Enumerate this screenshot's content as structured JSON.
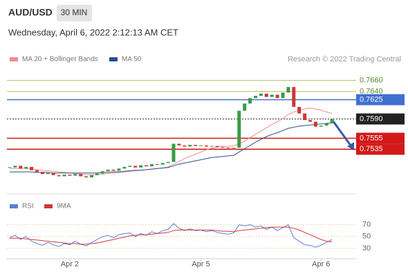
{
  "symbol": "AUD/USD",
  "timeframe": "30 MIN",
  "date": "Wednesday, April 6, 2022 2:12:13 AM CET",
  "credit": "Research © 2022 Trading Central",
  "chart_data": [
    {
      "type": "candlestick",
      "up_color": "#3a9a46",
      "down_color": "#d0363a",
      "ylim": [
        0.7454,
        0.7687
      ],
      "closes": [
        0.7502,
        0.7505,
        0.75,
        0.7503,
        0.7497,
        0.7494,
        0.749,
        0.7492,
        0.7488,
        0.7486,
        0.7489,
        0.7487,
        0.749,
        0.7486,
        0.7484,
        0.7488,
        0.7491,
        0.7495,
        0.7498,
        0.7496,
        0.75,
        0.7503,
        0.7505,
        0.7502,
        0.7506,
        0.7504,
        0.7508,
        0.7507,
        0.751,
        0.7512,
        0.7545,
        0.7542,
        0.754,
        0.7543,
        0.7541,
        0.7542,
        0.754,
        0.7541,
        0.7539,
        0.7538,
        0.7537,
        0.7538,
        0.7605,
        0.7618,
        0.7628,
        0.7632,
        0.7636,
        0.763,
        0.7634,
        0.7628,
        0.7638,
        0.7648,
        0.7612,
        0.76,
        0.7588,
        0.7585,
        0.7576,
        0.7578,
        0.7582,
        0.759
      ],
      "series": [
        {
          "name": "MA 20 + Bollinger Bands",
          "color": "#f08a8a",
          "values": [
            0.75,
            0.75,
            0.75,
            0.75,
            0.7499,
            0.7498,
            0.7497,
            0.7496,
            0.7495,
            0.7494,
            0.7493,
            0.7492,
            0.7491,
            0.749,
            0.7489,
            0.7489,
            0.7489,
            0.749,
            0.7491,
            0.7492,
            0.7493,
            0.7494,
            0.7495,
            0.7496,
            0.7497,
            0.7498,
            0.7499,
            0.75,
            0.7501,
            0.7503,
            0.7508,
            0.7513,
            0.7518,
            0.7522,
            0.7526,
            0.753,
            0.7534,
            0.7537,
            0.7539,
            0.754,
            0.754,
            0.7541,
            0.7545,
            0.755,
            0.7556,
            0.7562,
            0.7568,
            0.7574,
            0.758,
            0.7585,
            0.7591,
            0.7598,
            0.7603,
            0.7606,
            0.7608,
            0.761,
            0.7608,
            0.7606,
            0.7603,
            0.76
          ]
        },
        {
          "name": "MA 50",
          "color": "#2a4f8f",
          "values": [
            0.7494,
            0.7494,
            0.7494,
            0.7494,
            0.7494,
            0.7493,
            0.7493,
            0.7493,
            0.7492,
            0.7492,
            0.7492,
            0.7492,
            0.7492,
            0.7492,
            0.7492,
            0.7492,
            0.7492,
            0.7493,
            0.7493,
            0.7494,
            0.7494,
            0.7495,
            0.7496,
            0.7497,
            0.7497,
            0.7498,
            0.7499,
            0.75,
            0.7501,
            0.7502,
            0.7505,
            0.7508,
            0.751,
            0.7512,
            0.7514,
            0.7516,
            0.7518,
            0.752,
            0.7521,
            0.7522,
            0.7523,
            0.7524,
            0.753,
            0.7536,
            0.7542,
            0.7548,
            0.7553,
            0.7558,
            0.7562,
            0.7565,
            0.7569,
            0.7573,
            0.7575,
            0.7577,
            0.7578,
            0.7579,
            0.758,
            0.7581,
            0.7582,
            0.7583
          ]
        }
      ],
      "levels": [
        {
          "value": 0.766,
          "label": "0.7660",
          "color": "#b5c46a",
          "boxed": false,
          "text_color": "#5a8a1e"
        },
        {
          "value": 0.764,
          "label": "0.7640",
          "color": "#b5c46a",
          "boxed": false,
          "text_color": "#5a8a1e"
        },
        {
          "value": 0.7625,
          "label": "0.7625",
          "color": "#3f6fd1",
          "boxed": true,
          "text_color": "#ffffff"
        },
        {
          "value": 0.759,
          "label": "0.7590",
          "color": "#222222",
          "boxed": true,
          "text_color": "#ffffff"
        },
        {
          "value": 0.7555,
          "label": "0.7555",
          "color": "#d11a1a",
          "boxed": true,
          "text_color": "#ffffff"
        },
        {
          "value": 0.7535,
          "label": "0.7535",
          "color": "#d11a1a",
          "boxed": true,
          "text_color": "#ffffff"
        }
      ]
    },
    {
      "type": "line",
      "ylim": [
        10,
        100
      ],
      "yticks": [
        70,
        50,
        30
      ],
      "categories": [
        null,
        null,
        null,
        null,
        null,
        null,
        null,
        null,
        null,
        null,
        null,
        "Apr 2",
        null,
        null,
        null,
        null,
        null,
        null,
        null,
        null,
        null,
        null,
        null,
        null,
        null,
        null,
        null,
        null,
        null,
        null,
        null,
        null,
        null,
        null,
        null,
        "Apr 5",
        null,
        null,
        null,
        null,
        null,
        null,
        null,
        null,
        null,
        null,
        null,
        null,
        null,
        null,
        null,
        null,
        null,
        null,
        null,
        null,
        null,
        "Apr 6",
        null,
        null
      ],
      "series": [
        {
          "name": "RSI",
          "color": "#5b7fd6",
          "values": [
            48,
            52,
            45,
            50,
            42,
            38,
            35,
            40,
            36,
            33,
            38,
            36,
            42,
            37,
            34,
            40,
            45,
            50,
            52,
            48,
            53,
            55,
            56,
            50,
            55,
            52,
            58,
            55,
            60,
            62,
            72,
            64,
            60,
            63,
            60,
            61,
            58,
            60,
            57,
            55,
            54,
            56,
            70,
            68,
            70,
            66,
            68,
            62,
            66,
            60,
            65,
            70,
            48,
            42,
            36,
            35,
            32,
            35,
            40,
            45
          ]
        },
        {
          "name": "9MA",
          "color": "#d0363a",
          "values": [
            47,
            47,
            47,
            46,
            45,
            44,
            43,
            42,
            41,
            40,
            39,
            38,
            38,
            37,
            37,
            38,
            39,
            41,
            43,
            45,
            47,
            49,
            51,
            52,
            53,
            53,
            54,
            55,
            56,
            57,
            60,
            61,
            61,
            61,
            61,
            61,
            61,
            61,
            60,
            59,
            59,
            58,
            60,
            61,
            62,
            63,
            64,
            65,
            66,
            66,
            66,
            66,
            64,
            61,
            57,
            53,
            49,
            45,
            42,
            41
          ]
        }
      ]
    }
  ]
}
